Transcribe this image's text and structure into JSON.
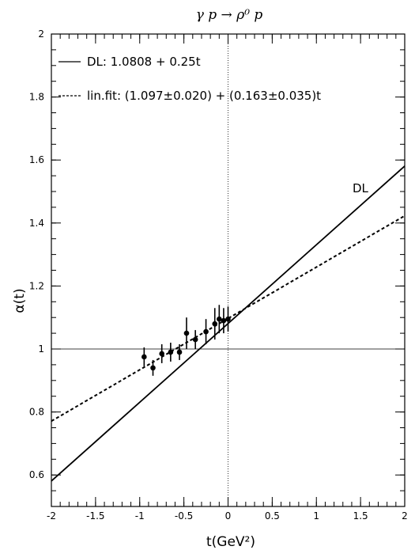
{
  "chart_data": {
    "type": "scatter",
    "title": "γ p → ρ⁰ p",
    "xlabel": "t(GeV²)",
    "ylabel": "α(t)",
    "xlim": [
      -2,
      2
    ],
    "ylim": [
      0.5,
      2
    ],
    "x_ticks": [
      -2,
      -1.5,
      -1,
      -0.5,
      0,
      0.5,
      1,
      1.5,
      2
    ],
    "x_tick_labels": [
      "-2",
      "-1.5",
      "-1",
      "-0.5",
      "0",
      "0.5",
      "1",
      "1.5",
      "2"
    ],
    "y_ticks": [
      0.6,
      0.8,
      1,
      1.2,
      1.4,
      1.6,
      1.8,
      2
    ],
    "y_tick_labels": [
      "0.6",
      "0.8",
      "1",
      "1.2",
      "1.4",
      "1.6",
      "1.8",
      "2"
    ],
    "reference_lines": {
      "x": 0,
      "y": 1
    },
    "lines": [
      {
        "legend": "DL: 1.0808 + 0.25t",
        "label": "DL",
        "intercept": 1.0808,
        "slope": 0.25,
        "style": "solid"
      },
      {
        "legend": "lin.fit: (1.097±0.020) + (0.163±0.035)t",
        "intercept": 1.097,
        "slope": 0.163,
        "style": "dashed"
      }
    ],
    "points": [
      {
        "x": -0.95,
        "y": 0.975,
        "err": 0.03
      },
      {
        "x": -0.85,
        "y": 0.94,
        "err": 0.025
      },
      {
        "x": -0.75,
        "y": 0.985,
        "err": 0.03
      },
      {
        "x": -0.65,
        "y": 0.99,
        "err": 0.03
      },
      {
        "x": -0.55,
        "y": 0.99,
        "err": 0.025
      },
      {
        "x": -0.47,
        "y": 1.05,
        "err": 0.05
      },
      {
        "x": -0.37,
        "y": 1.03,
        "err": 0.03
      },
      {
        "x": -0.25,
        "y": 1.055,
        "err": 0.04
      },
      {
        "x": -0.15,
        "y": 1.08,
        "err": 0.05
      },
      {
        "x": -0.1,
        "y": 1.095,
        "err": 0.045
      },
      {
        "x": -0.05,
        "y": 1.09,
        "err": 0.04
      },
      {
        "x": 0.0,
        "y": 1.095,
        "err": 0.04
      }
    ]
  }
}
